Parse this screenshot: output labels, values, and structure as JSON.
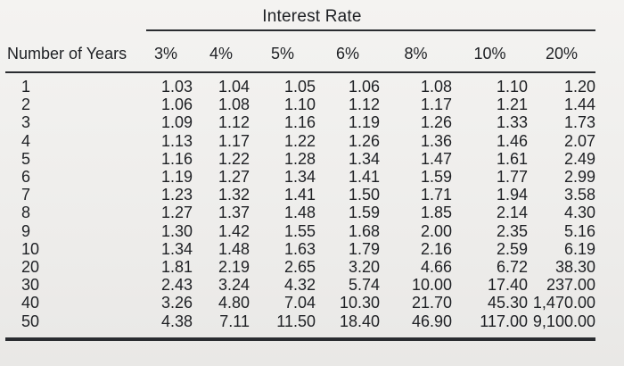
{
  "table": {
    "group_header": "Interest Rate",
    "columns": [
      "Number of Years",
      "3%",
      "4%",
      "5%",
      "6%",
      "8%",
      "10%",
      "20%"
    ],
    "rows": [
      [
        "1",
        "1.03",
        "1.04",
        "1.05",
        "1.06",
        "1.08",
        "1.10",
        "1.20"
      ],
      [
        "2",
        "1.06",
        "1.08",
        "1.10",
        "1.12",
        "1.17",
        "1.21",
        "1.44"
      ],
      [
        "3",
        "1.09",
        "1.12",
        "1.16",
        "1.19",
        "1.26",
        "1.33",
        "1.73"
      ],
      [
        "4",
        "1.13",
        "1.17",
        "1.22",
        "1.26",
        "1.36",
        "1.46",
        "2.07"
      ],
      [
        "5",
        "1.16",
        "1.22",
        "1.28",
        "1.34",
        "1.47",
        "1.61",
        "2.49"
      ],
      [
        "6",
        "1.19",
        "1.27",
        "1.34",
        "1.41",
        "1.59",
        "1.77",
        "2.99"
      ],
      [
        "7",
        "1.23",
        "1.32",
        "1.41",
        "1.50",
        "1.71",
        "1.94",
        "3.58"
      ],
      [
        "8",
        "1.27",
        "1.37",
        "1.48",
        "1.59",
        "1.85",
        "2.14",
        "4.30"
      ],
      [
        "9",
        "1.30",
        "1.42",
        "1.55",
        "1.68",
        "2.00",
        "2.35",
        "5.16"
      ],
      [
        "10",
        "1.34",
        "1.48",
        "1.63",
        "1.79",
        "2.16",
        "2.59",
        "6.19"
      ],
      [
        "20",
        "1.81",
        "2.19",
        "2.65",
        "3.20",
        "4.66",
        "6.72",
        "38.30"
      ],
      [
        "30",
        "2.43",
        "3.24",
        "4.32",
        "5.74",
        "10.00",
        "17.40",
        "237.00"
      ],
      [
        "40",
        "3.26",
        "4.80",
        "7.04",
        "10.30",
        "21.70",
        "45.30",
        "1,470.00"
      ],
      [
        "50",
        "4.38",
        "7.11",
        "11.50",
        "18.40",
        "46.90",
        "117.00",
        "9,100.00"
      ]
    ]
  }
}
